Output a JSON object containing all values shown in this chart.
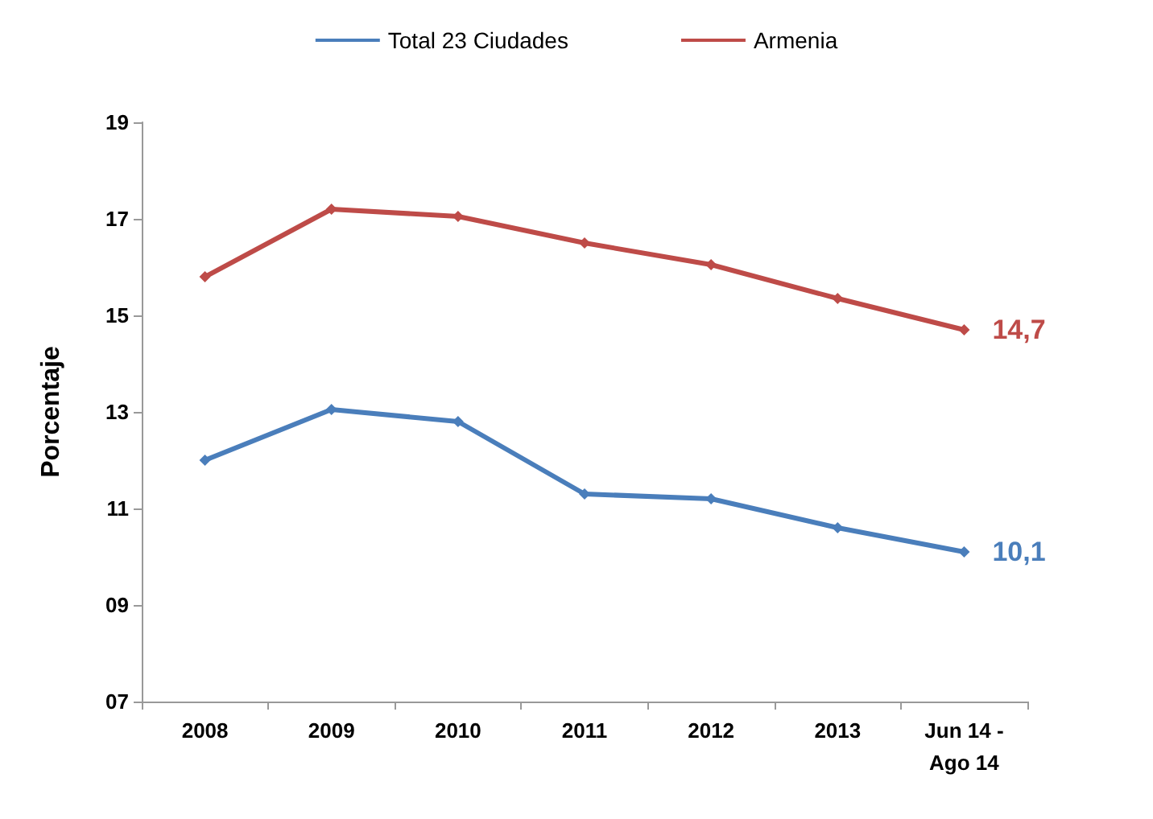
{
  "chart_data": {
    "type": "line",
    "ylabel": "Porcentaje",
    "categories": [
      "2008",
      "2009",
      "2010",
      "2011",
      "2012",
      "2013",
      "Jun 14 -\nAgo 14"
    ],
    "series": [
      {
        "name": "Total 23 Ciudades",
        "color": "#4a7ebb",
        "values": [
          12.0,
          13.05,
          12.8,
          11.3,
          11.2,
          10.6,
          10.1
        ],
        "value_labels": [
          null,
          null,
          null,
          null,
          null,
          null,
          "10,1"
        ]
      },
      {
        "name": "Armenia",
        "color": "#be4b48",
        "values": [
          15.8,
          17.2,
          17.05,
          16.5,
          16.05,
          15.35,
          14.7
        ],
        "value_labels": [
          null,
          null,
          null,
          null,
          null,
          null,
          "14,7"
        ]
      }
    ],
    "ylim": [
      7,
      19
    ],
    "yticks": [
      {
        "value": 7,
        "label": "07"
      },
      {
        "value": 9,
        "label": "09"
      },
      11,
      13,
      15,
      17,
      19
    ],
    "grid": false,
    "legend": "top",
    "marker": "diamond",
    "line_style": "solid"
  }
}
